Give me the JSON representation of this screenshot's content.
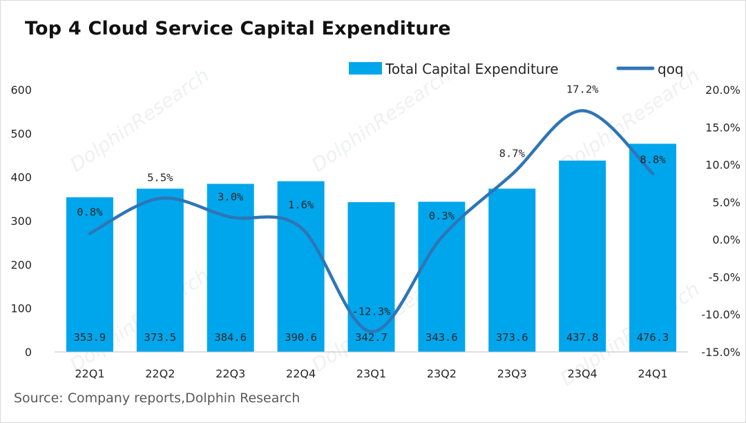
{
  "title": "Top 4 Cloud Service Capital Expenditure",
  "source": "Source: Company reports,Dolphin Research",
  "watermark": "DolphinResearch",
  "colors": {
    "bar": "#00A6EC",
    "line": "#2E75B6",
    "text": "#262626"
  },
  "chart_data": {
    "type": "bar",
    "title": "Top 4 Cloud Service Capital Expenditure",
    "categories": [
      "22Q1",
      "22Q2",
      "22Q3",
      "22Q4",
      "23Q1",
      "23Q2",
      "23Q3",
      "23Q4",
      "24Q1"
    ],
    "series": [
      {
        "name": "Total Capital Expenditure",
        "type": "bar",
        "axis": "left",
        "values": [
          353.9,
          373.5,
          384.6,
          390.6,
          342.7,
          343.6,
          373.6,
          437.8,
          476.3
        ],
        "labels": [
          "353.9",
          "373.5",
          "384.6",
          "390.6",
          "342.7",
          "343.6",
          "373.6",
          "437.8",
          "476.3"
        ]
      },
      {
        "name": "qoq",
        "type": "line",
        "axis": "right",
        "values": [
          0.8,
          5.5,
          3.0,
          1.6,
          -12.3,
          0.3,
          8.7,
          17.2,
          8.8
        ],
        "labels": [
          "0.8%",
          "5.5%",
          "3.0%",
          "1.6%",
          "-12.3%",
          "0.3%",
          "8.7%",
          "17.2%",
          "8.8%"
        ]
      }
    ],
    "y_left": {
      "ylim": [
        0,
        600
      ],
      "ticks": [
        "0",
        "100",
        "200",
        "300",
        "400",
        "500",
        "600"
      ]
    },
    "y_right": {
      "ylim": [
        -15,
        20
      ],
      "ticks": [
        "-15.0%",
        "-10.0%",
        "-5.0%",
        "0.0%",
        "5.0%",
        "10.0%",
        "15.0%",
        "20.0%"
      ]
    },
    "legend": {
      "position": "top-right",
      "entries": [
        "Total Capital Expenditure",
        "qoq"
      ]
    },
    "grid": false
  }
}
